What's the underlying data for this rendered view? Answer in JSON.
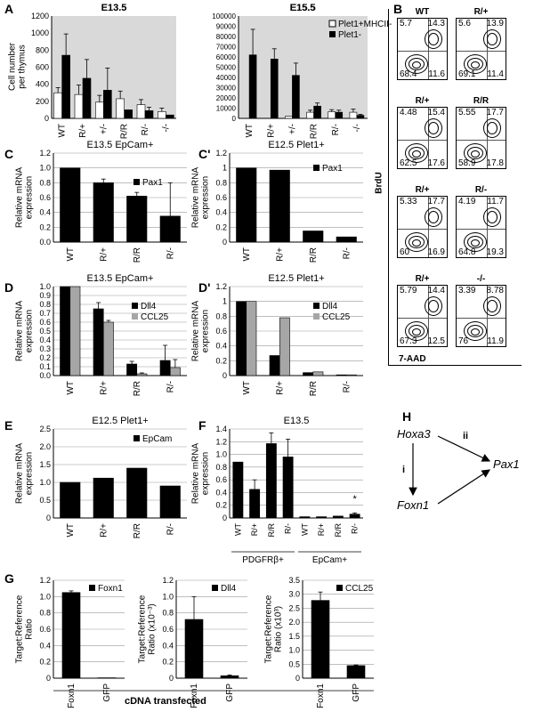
{
  "panel_labels": {
    "A": "A",
    "B": "B",
    "C": "C",
    "C2": "C'",
    "D": "D",
    "D2": "D'",
    "E": "E",
    "F": "F",
    "G": "G",
    "H": "H"
  },
  "colors": {
    "black": "#000000",
    "white": "#ffffff",
    "grey": "#a6a6a6",
    "lightgrey": "#c8c8c8",
    "panel_bg": "#d9d9d9"
  },
  "panelA": {
    "ylabel": "Cell number\nper thymus",
    "left": {
      "title": "E13.5",
      "yticks": [
        "0",
        "200",
        "400",
        "600",
        "800",
        "1000",
        "1200"
      ],
      "categories": [
        "WT",
        "R/+",
        "+/-",
        "R/R",
        "R/-",
        "-/-"
      ],
      "series": [
        {
          "name": "",
          "color": "#ffffff",
          "values": [
            300,
            280,
            190,
            230,
            160,
            80
          ],
          "err": [
            60,
            110,
            80,
            90,
            60,
            40
          ]
        },
        {
          "name": "",
          "color": "#000000",
          "values": [
            740,
            470,
            330,
            100,
            90,
            40
          ],
          "err": [
            250,
            220,
            260,
            0,
            40,
            0
          ]
        }
      ],
      "ylim": [
        0,
        1200
      ]
    },
    "right": {
      "title": "E15.5",
      "yticks": [
        "0",
        "10000",
        "20000",
        "30000",
        "40000",
        "50000",
        "60000",
        "70000",
        "80000",
        "90000",
        "100000"
      ],
      "categories": [
        "WT",
        "R/+",
        "+/-",
        "R/R",
        "R/-",
        "-/-"
      ],
      "legend": [
        "Plet1+MHCII-",
        "Plet1-"
      ],
      "series": [
        {
          "name": "Plet1+MHCII-",
          "color": "#ffffff",
          "values": [
            0,
            0,
            2000,
            6000,
            6500,
            6000
          ],
          "err": [
            0,
            0,
            0,
            2000,
            2000,
            3000
          ]
        },
        {
          "name": "Plet1-",
          "color": "#000000",
          "values": [
            62000,
            58000,
            42000,
            12000,
            6000,
            3000
          ],
          "err": [
            25000,
            10000,
            12000,
            3000,
            2000,
            1000
          ]
        }
      ],
      "ylim": [
        0,
        100000
      ]
    }
  },
  "panelB": {
    "ylabel": "BrdU",
    "xlabel": "7-AAD",
    "plots": [
      {
        "title": "WT",
        "tl": "5.7",
        "tr": "14.3",
        "bl": "68.4",
        "br": "11.6"
      },
      {
        "title": "R/+",
        "tl": "5.6",
        "tr": "13.9",
        "bl": "69.1",
        "br": "11.4"
      },
      {
        "title": "R/+",
        "tl": "4.48",
        "tr": "15.4",
        "bl": "62.5",
        "br": "17.6"
      },
      {
        "title": "R/R",
        "tl": "5.55",
        "tr": "17.7",
        "bl": "58.9",
        "br": "17.8"
      },
      {
        "title": "R/+",
        "tl": "5.33",
        "tr": "17.7",
        "bl": "60",
        "br": "16.9"
      },
      {
        "title": "R/-",
        "tl": "4.19",
        "tr": "11.7",
        "bl": "64.8",
        "br": "19.3"
      },
      {
        "title": "R/+",
        "tl": "5.79",
        "tr": "14.4",
        "bl": "67.3",
        "br": "12.5"
      },
      {
        "title": "-/-",
        "tl": "3.39",
        "tr": "8.78",
        "bl": "76",
        "br": "11.9"
      }
    ]
  },
  "chart_data": [
    {
      "id": "C",
      "type": "bar",
      "title": "E13.5 EpCam+",
      "ylabel": "Relative mRNA\nexpression",
      "categories": [
        "WT",
        "R/+",
        "R/R",
        "R/-"
      ],
      "yticks": [
        "0.0",
        "0.2",
        "0.4",
        "0.6",
        "0.8",
        "1.0",
        "1.2"
      ],
      "ylim": [
        0,
        1.2
      ],
      "series": [
        {
          "name": "Pax1",
          "color": "#000000",
          "values": [
            1.0,
            0.8,
            0.62,
            0.35
          ],
          "err": [
            0,
            0.05,
            0.05,
            0.45
          ]
        }
      ]
    },
    {
      "id": "C2",
      "type": "bar",
      "title": "E12.5 Plet1+",
      "ylabel": "Relative mRNA\nexpression",
      "categories": [
        "WT",
        "R/+",
        "R/R",
        "R/-"
      ],
      "yticks": [
        "0",
        "0.2",
        "0.4",
        "0.6",
        "0.8",
        "1",
        "1.2"
      ],
      "ylim": [
        0,
        1.2
      ],
      "series": [
        {
          "name": "Pax1",
          "color": "#000000",
          "values": [
            1.0,
            0.97,
            0.15,
            0.07
          ],
          "err": [
            0,
            0,
            0,
            0
          ]
        }
      ]
    },
    {
      "id": "D",
      "type": "bar",
      "title": "E13.5 EpCam+",
      "ylabel": "Relative mRNA\nexpression",
      "categories": [
        "WT",
        "R/+",
        "R/R",
        "R/-"
      ],
      "yticks": [
        "0.0",
        "0.1",
        "0.2",
        "0.3",
        "0.4",
        "0.5",
        "0.6",
        "0.7",
        "0.8",
        "0.9",
        "1.0"
      ],
      "ylim": [
        0,
        1.0
      ],
      "series": [
        {
          "name": "Dll4",
          "color": "#000000",
          "values": [
            1.0,
            0.75,
            0.13,
            0.17
          ],
          "err": [
            0,
            0.07,
            0.03,
            0.17
          ]
        },
        {
          "name": "CCL25",
          "color": "#a6a6a6",
          "values": [
            1.0,
            0.6,
            0.02,
            0.09
          ],
          "err": [
            0,
            0.02,
            0.01,
            0.09
          ]
        }
      ]
    },
    {
      "id": "D2",
      "type": "bar",
      "title": "E12.5 Plet1+",
      "ylabel": "Relative mRNA\nexpression",
      "categories": [
        "WT",
        "R/+",
        "R/R",
        "R/-"
      ],
      "yticks": [
        "0",
        "0.2",
        "0.4",
        "0.6",
        "0.8",
        "1",
        "1.2"
      ],
      "ylim": [
        0,
        1.2
      ],
      "series": [
        {
          "name": "Dll4",
          "color": "#000000",
          "values": [
            1.0,
            0.27,
            0.04,
            0.01
          ],
          "err": [
            0,
            0,
            0,
            0
          ]
        },
        {
          "name": "CCL25",
          "color": "#a6a6a6",
          "values": [
            1.0,
            0.78,
            0.05,
            0.01
          ],
          "err": [
            0,
            0,
            0,
            0
          ]
        }
      ]
    },
    {
      "id": "E",
      "type": "bar",
      "title": "E12.5 Plet1+",
      "ylabel": "Relative mRNA\nexpression",
      "categories": [
        "WT",
        "R/+",
        "R/R",
        "R/-"
      ],
      "yticks": [
        "0",
        "0.5",
        "1.0",
        "1.5",
        "2.0",
        "2.5"
      ],
      "ylim": [
        0,
        2.5
      ],
      "series": [
        {
          "name": "EpCam",
          "color": "#000000",
          "values": [
            1.0,
            1.12,
            1.4,
            0.9
          ],
          "err": [
            0,
            0,
            0,
            0
          ]
        }
      ]
    },
    {
      "id": "F",
      "type": "bar",
      "title": "E13.5",
      "ylabel": "Relative mRNA\nexpression",
      "categories": [
        "WT",
        "R/+",
        "R/R",
        "R/-",
        "WT",
        "R/+",
        "R/R",
        "R/-"
      ],
      "groups": [
        "PDGFRβ+",
        "EpCam+"
      ],
      "yticks": [
        "0",
        "0.2",
        "0.4",
        "0.6",
        "0.8",
        "1.0",
        "1.2",
        "1.4"
      ],
      "ylim": [
        0,
        1.4
      ],
      "annotation": "*",
      "series": [
        {
          "name": "",
          "color": "#000000",
          "values": [
            0.88,
            0.45,
            1.17,
            0.96,
            0.02,
            0.02,
            0.03,
            0.06
          ],
          "err": [
            0,
            0.15,
            0.17,
            0.28,
            0,
            0,
            0,
            0.02
          ]
        }
      ]
    },
    {
      "id": "G1",
      "type": "bar",
      "title": "",
      "ylabel": "Target:Reference\nRatio",
      "categories": [
        "Foxn1",
        "GFP"
      ],
      "yticks": [
        "0",
        "0.2",
        "0.4",
        "0.6",
        "0.8",
        "1.0",
        "1.2"
      ],
      "ylim": [
        0,
        1.2
      ],
      "series": [
        {
          "name": "Foxn1",
          "color": "#000000",
          "values": [
            1.05,
            0.005
          ],
          "err": [
            0.02,
            0
          ]
        }
      ]
    },
    {
      "id": "G2",
      "type": "bar",
      "title": "",
      "ylabel": "Target:Reference\nRatio (x10⁻³)",
      "categories": [
        "Foxn1",
        "GFP"
      ],
      "yticks": [
        "0",
        "0.2",
        "0.4",
        "0.6",
        "0.8",
        "1.0",
        "1.2"
      ],
      "ylim": [
        0,
        1.2
      ],
      "series": [
        {
          "name": "Dll4",
          "color": "#000000",
          "values": [
            0.72,
            0.03
          ],
          "err": [
            0.28,
            0.01
          ]
        }
      ]
    },
    {
      "id": "G3",
      "type": "bar",
      "title": "",
      "ylabel": "Target:Reference\nRatio (x10³)",
      "categories": [
        "Foxn1",
        "GFP"
      ],
      "yticks": [
        "0",
        "0.5",
        "1.0",
        "1.5",
        "2.0",
        "2.5",
        "3.0",
        "3.5"
      ],
      "ylim": [
        0,
        3.5
      ],
      "series": [
        {
          "name": "CCL25",
          "color": "#000000",
          "values": [
            2.78,
            0.45
          ],
          "err": [
            0.3,
            0.02
          ]
        }
      ]
    }
  ],
  "panelG": {
    "xlabel": "cDNA transfected"
  },
  "panelH": {
    "nodes": [
      "Hoxa3",
      "Pax1",
      "Foxn1"
    ],
    "edges": [
      "i",
      "ii"
    ]
  }
}
